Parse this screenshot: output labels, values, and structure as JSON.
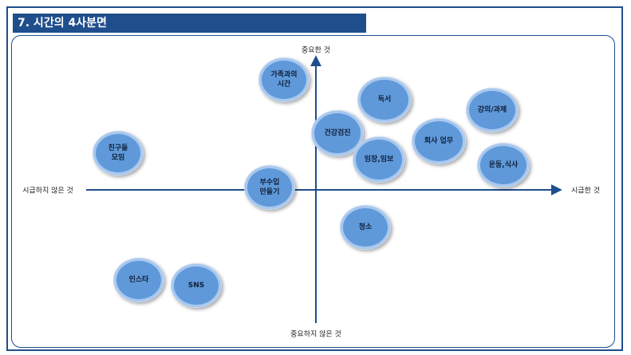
{
  "header": {
    "title": "7. 시간의 4사분면"
  },
  "axes": {
    "top": "중요한 것",
    "bottom": "중요하지 않은 것",
    "left": "시급하지 않은 것",
    "right": "시급한 것"
  },
  "bubbles": [
    {
      "label": "가족과의\n시간"
    },
    {
      "label": "독서"
    },
    {
      "label": "강의/과제"
    },
    {
      "label": "건강검진"
    },
    {
      "label": "회사 업무"
    },
    {
      "label": "친구들\n모임"
    },
    {
      "label": "임장,임보"
    },
    {
      "label": "운동,식사"
    },
    {
      "label": "부수입\n만들기"
    },
    {
      "label": "청소"
    },
    {
      "label": "인스타"
    },
    {
      "label": "SNS"
    }
  ],
  "colors": {
    "accent": "#1f4e8c",
    "bubble": "#5f99d9"
  }
}
